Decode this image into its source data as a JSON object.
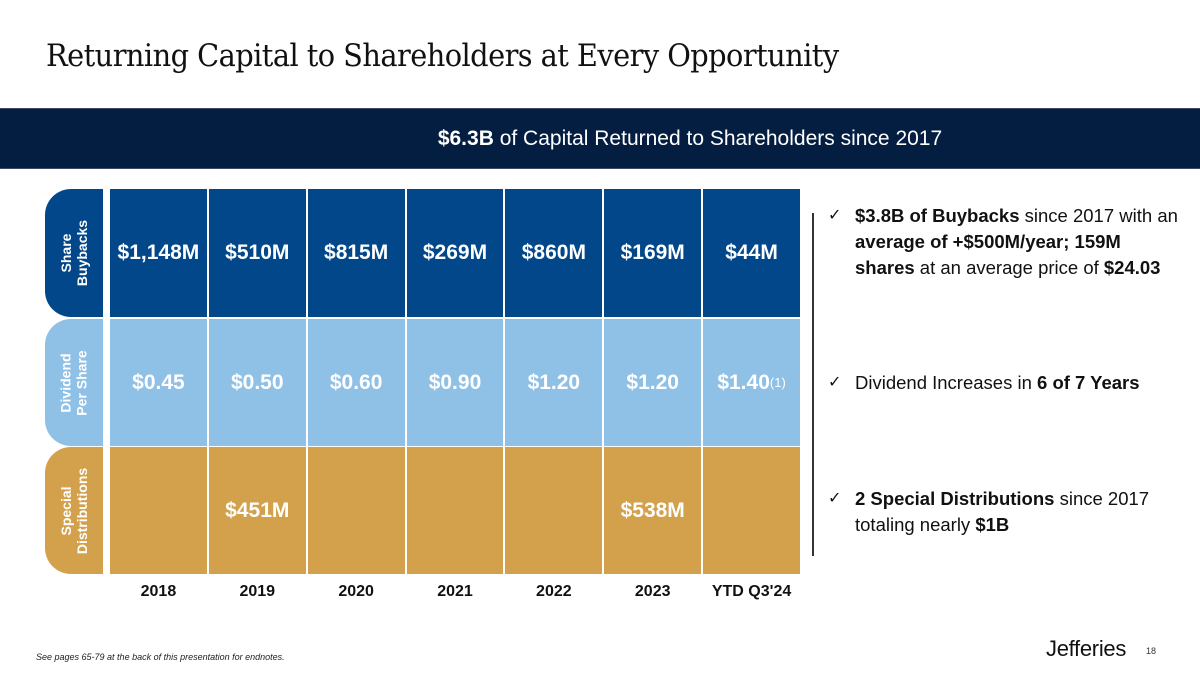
{
  "title": "Returning Capital to Shareholders at Every Opportunity",
  "banner": {
    "bold": "$6.3B",
    "rest": " of Capital Returned to Shareholders since 2017",
    "color": "#041e42"
  },
  "colors": {
    "share_buybacks": "#02478a",
    "dividend": "#8fc0e6",
    "special": "#d3a14c"
  },
  "chart_data": {
    "type": "table",
    "title": "$6.3B of Capital Returned to Shareholders since 2017",
    "categories": [
      "2018",
      "2019",
      "2020",
      "2021",
      "2022",
      "2023",
      "YTD Q3'24"
    ],
    "series": [
      {
        "name": "Share Buybacks",
        "label_lines": [
          "Share",
          "Buybacks"
        ],
        "unit": "$M",
        "values": [
          1148,
          510,
          815,
          269,
          860,
          169,
          44
        ],
        "labels": [
          "$1,148M",
          "$510M",
          "$815M",
          "$269M",
          "$860M",
          "$169M",
          "$44M"
        ]
      },
      {
        "name": "Dividend Per Share",
        "label_lines": [
          "Dividend",
          "Per Share"
        ],
        "unit": "$",
        "values": [
          0.45,
          0.5,
          0.6,
          0.9,
          1.2,
          1.2,
          1.4
        ],
        "labels": [
          "$0.45",
          "$0.50",
          "$0.60",
          "$0.90",
          "$1.20",
          "$1.20",
          "$1.40"
        ],
        "footnotes": [
          "",
          "",
          "",
          "",
          "",
          "",
          "(1)"
        ]
      },
      {
        "name": "Special Distributions",
        "label_lines": [
          "Special",
          "Distributions"
        ],
        "unit": "$M",
        "values": [
          null,
          451,
          null,
          null,
          null,
          538,
          null
        ],
        "labels": [
          "",
          "$451M",
          "",
          "",
          "",
          "$538M",
          ""
        ]
      }
    ]
  },
  "bullets": [
    {
      "check": "✓",
      "parts": [
        {
          "t": "$3.8B of Buybacks",
          "b": true
        },
        {
          "t": " since 2017 with an ",
          "b": false
        },
        {
          "t": "average of +$500M/year; 159M shares",
          "b": true
        },
        {
          "t": " at an average price of ",
          "b": false
        },
        {
          "t": "$24.03",
          "b": true
        }
      ]
    },
    {
      "check": "✓",
      "parts": [
        {
          "t": "Dividend Increases in ",
          "b": false
        },
        {
          "t": "6 of 7 Years",
          "b": true
        }
      ]
    },
    {
      "check": "✓",
      "parts": [
        {
          "t": "2 Special Distributions",
          "b": true
        },
        {
          "t": " since 2017 totaling nearly ",
          "b": false
        },
        {
          "t": "$1B",
          "b": true
        }
      ]
    }
  ],
  "footer": {
    "note": "See pages 65-79 at the back of this presentation for endnotes.",
    "logo": "Jefferies",
    "page": "18"
  }
}
